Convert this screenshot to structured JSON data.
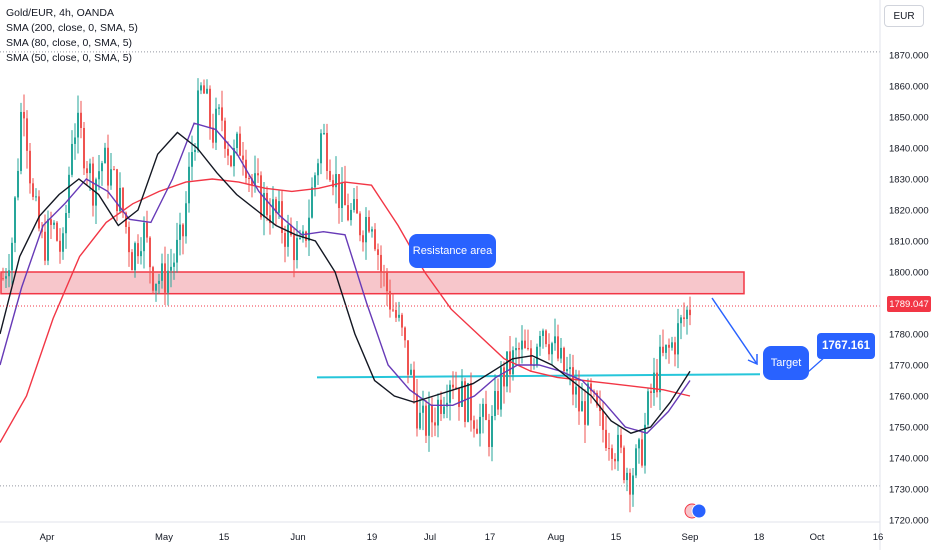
{
  "legend": {
    "title": "Gold/EUR, 4h, OANDA",
    "sma200": "SMA (200, close, 0, SMA, 5)",
    "sma80": "SMA (80, close, 0, SMA, 5)",
    "sma50": "SMA (50, close, 0, SMA, 5)"
  },
  "currency_button": "EUR",
  "annotations": {
    "resistance_label": "Resistance area",
    "target_label": "Target",
    "target_value": "1767.161"
  },
  "current_price": "1789.047",
  "colors": {
    "up": "#26a69a",
    "down": "#ef5350",
    "sma200": "#f23645",
    "sma80": "#673ab7",
    "sma50": "#131722",
    "resistance_fill": "#f7c6cb",
    "resistance_border": "#f23645",
    "support_line": "#26c6da",
    "callout": "#2962ff"
  },
  "chart_data": {
    "type": "candlestick",
    "symbol": "Gold/EUR",
    "timeframe": "4h",
    "y_ticks": [
      "1870.000",
      "1860.000",
      "1850.000",
      "1840.000",
      "1830.000",
      "1820.000",
      "1810.000",
      "1800.000",
      "1790.000",
      "1780.000",
      "1770.000",
      "1760.000",
      "1750.000",
      "1740.000",
      "1730.000",
      "1720.000"
    ],
    "ylim": [
      1716,
      1882
    ],
    "x_ticks": [
      "Apr",
      "May",
      "15",
      "Jun",
      "19",
      "Jul",
      "17",
      "Aug",
      "15",
      "Sep",
      "18",
      "Oct",
      "16"
    ],
    "close_path": [
      1798,
      1812,
      1860,
      1822,
      1808,
      1815,
      1805,
      1848,
      1842,
      1828,
      1836,
      1830,
      1820,
      1805,
      1815,
      1800,
      1797,
      1803,
      1810,
      1840,
      1860,
      1845,
      1850,
      1835,
      1843,
      1828,
      1823,
      1820,
      1815,
      1810,
      1805,
      1825,
      1845,
      1835,
      1822,
      1818,
      1815,
      1820,
      1800,
      1790,
      1780,
      1765,
      1750,
      1752,
      1760,
      1768,
      1760,
      1756,
      1752,
      1748,
      1765,
      1770,
      1775,
      1770,
      1785,
      1778,
      1770,
      1765,
      1755,
      1758,
      1750,
      1748,
      1740,
      1735,
      1740,
      1760,
      1770,
      1775,
      1782,
      1789
    ],
    "sma50": [
      1780,
      1805,
      1818,
      1825,
      1830,
      1825,
      1815,
      1820,
      1838,
      1845,
      1840,
      1832,
      1825,
      1820,
      1815,
      1812,
      1810,
      1800,
      1780,
      1765,
      1760,
      1758,
      1760,
      1762,
      1764,
      1768,
      1772,
      1773,
      1770,
      1765,
      1760,
      1752,
      1748,
      1750,
      1758,
      1768
    ],
    "sma80": [
      1770,
      1795,
      1815,
      1822,
      1830,
      1826,
      1817,
      1816,
      1830,
      1848,
      1846,
      1838,
      1826,
      1818,
      1812,
      1813,
      1812,
      1790,
      1770,
      1762,
      1757,
      1757,
      1760,
      1766,
      1770,
      1770,
      1768,
      1765,
      1758,
      1750,
      1748,
      1755,
      1765
    ],
    "sma200": [
      1745,
      1760,
      1785,
      1805,
      1816,
      1822,
      1826,
      1829,
      1830,
      1829,
      1827,
      1826,
      1827,
      1829,
      1828,
      1815,
      1800,
      1788,
      1780,
      1772,
      1768,
      1766,
      1765,
      1764,
      1763,
      1762,
      1760
    ],
    "resistance_zone": [
      1793,
      1800
    ],
    "support_line": 1766,
    "target": 1767.161,
    "current_price": 1789.047,
    "highlines": [
      1871,
      1731
    ]
  }
}
